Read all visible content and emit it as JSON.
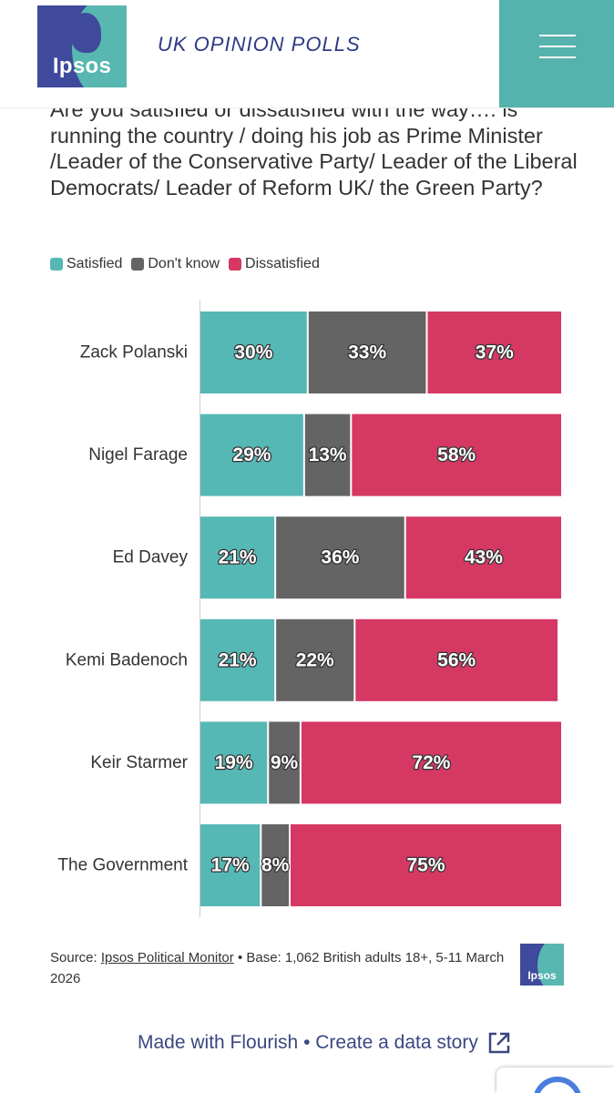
{
  "header": {
    "logo_text": "Ipsos",
    "title": "UK OPINION POLLS",
    "menu_icon": "hamburger-menu-icon"
  },
  "question": "Are you satisfied or dissatisfied with the way…. is running the country / doing his job as Prime Minister /Leader of the Conservative Party/ Leader of the Liberal Democrats/ Leader of Reform UK/ the Green Party?",
  "legend": [
    {
      "label": "Satisfied",
      "color": "#56b8b5"
    },
    {
      "label": "Don't know",
      "color": "#646464"
    },
    {
      "label": "Dissatisfied",
      "color": "#d63864"
    }
  ],
  "chart_data": {
    "type": "bar",
    "orientation": "horizontal",
    "stacked": true,
    "categories": [
      "Zack Polanski",
      "Nigel Farage",
      "Ed Davey",
      "Kemi Badenoch",
      "Keir Starmer",
      "The Government"
    ],
    "series": [
      {
        "name": "Satisfied",
        "color": "#56b8b5",
        "values": [
          30,
          29,
          21,
          21,
          19,
          17
        ],
        "labels": [
          "30%",
          "29%",
          "21%",
          "21%",
          "19%",
          "17%"
        ]
      },
      {
        "name": "Don't know",
        "color": "#646464",
        "values": [
          33,
          13,
          36,
          22,
          9,
          8
        ],
        "labels": [
          "33%",
          "13%",
          "36%",
          "22%",
          "9%",
          "8%"
        ]
      },
      {
        "name": "Dissatisfied",
        "color": "#d63864",
        "values": [
          37,
          58,
          43,
          56,
          72,
          75
        ],
        "labels": [
          "37%",
          "58%",
          "43%",
          "56%",
          "72%",
          "75%"
        ]
      }
    ],
    "xlim": [
      0,
      100
    ],
    "legend_position": "top-left",
    "grid": false
  },
  "footer": {
    "source_prefix": "Source: ",
    "source_link": "Ipsos Political Monitor",
    "source_rest": " • Base: 1,062 British adults 18+, 5-11 March 2026",
    "small_logo_text": "Ipsos",
    "flourish_text": "Made with Flourish • Create a data story",
    "flourish_icon": "external-link-icon"
  }
}
